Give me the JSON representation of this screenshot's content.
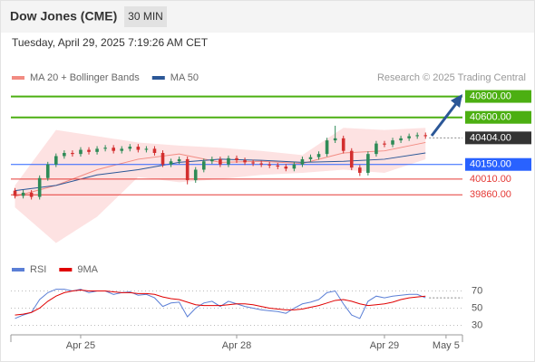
{
  "header": {
    "title": "Dow Jones (CME)",
    "interval": "30 MIN",
    "timestamp": "Tuesday, April 29, 2025 7:19:26 AM CET"
  },
  "chart_data": [
    {
      "type": "candlestick",
      "credit": "Research © 2025 Trading Central",
      "xlim": [
        0,
        55
      ],
      "xticks": [
        {
          "value": 8,
          "label": "Apr 25"
        },
        {
          "value": 27,
          "label": "Apr 28"
        },
        {
          "value": 45,
          "label": "Apr 29"
        },
        {
          "value": 52.5,
          "label": "May 5"
        }
      ],
      "ylim": [
        39300,
        40900
      ],
      "up_color": "#2e8b57",
      "down_color": "#d32f2f",
      "open": [
        39900,
        39850,
        39880,
        39840,
        40020,
        40150,
        40230,
        40260,
        40250,
        40290,
        40270,
        40300,
        40310,
        40280,
        40300,
        40320,
        40290,
        40300,
        40260,
        40150,
        40180,
        40200,
        40000,
        40100,
        40180,
        40200,
        40150,
        40210,
        40190,
        40170,
        40160,
        40150,
        40140,
        40130,
        40110,
        40150,
        40200,
        40220,
        40250,
        40380,
        40400,
        40280,
        40120,
        40070,
        40250,
        40350,
        40340,
        40380,
        40400,
        40420,
        40430
      ],
      "high": [
        39925,
        39905,
        39905,
        40045,
        40175,
        40255,
        40285,
        40285,
        40315,
        40315,
        40325,
        40335,
        40335,
        40325,
        40345,
        40345,
        40325,
        40325,
        40285,
        40205,
        40225,
        40225,
        40125,
        40205,
        40225,
        40225,
        40235,
        40235,
        40215,
        40195,
        40185,
        40175,
        40165,
        40155,
        40175,
        40225,
        40245,
        40275,
        40405,
        40520,
        40425,
        40305,
        40145,
        40275,
        40375,
        40375,
        40405,
        40425,
        40445,
        40455,
        40455
      ],
      "low": [
        39825,
        39825,
        39815,
        39815,
        39995,
        40125,
        40205,
        40225,
        40225,
        40245,
        40245,
        40275,
        40255,
        40255,
        40275,
        40265,
        40265,
        40235,
        40125,
        40125,
        40155,
        39960,
        39975,
        40075,
        40155,
        40125,
        40125,
        40165,
        40145,
        40135,
        40125,
        40115,
        40105,
        40085,
        40085,
        40125,
        40175,
        40195,
        40225,
        40355,
        40255,
        40095,
        40040,
        40045,
        40225,
        40315,
        40315,
        40355,
        40375,
        40395,
        40395
      ],
      "close": [
        39850,
        39880,
        39840,
        40020,
        40150,
        40230,
        40260,
        40250,
        40290,
        40270,
        40300,
        40310,
        40280,
        40300,
        40320,
        40290,
        40300,
        40260,
        40150,
        40180,
        40200,
        40000,
        40100,
        40180,
        40200,
        40150,
        40210,
        40190,
        40170,
        40160,
        40150,
        40140,
        40130,
        40110,
        40150,
        40200,
        40220,
        40250,
        40380,
        40400,
        40280,
        40120,
        40070,
        40250,
        40350,
        40340,
        40380,
        40400,
        40420,
        40430,
        40420
      ],
      "indicators": {
        "x": [
          0,
          5,
          10,
          15,
          20,
          25,
          30,
          35,
          40,
          45,
          50
        ],
        "series": [
          {
            "name": "MA 20 + Bollinger Bands",
            "color": "#f28b82",
            "band_color": "#fde2e2",
            "upper": [
              39950,
              40480,
              40420,
              40360,
              40330,
              40310,
              40280,
              40240,
              40500,
              40480,
              40500
            ],
            "lower": [
              39740,
              39400,
              39650,
              40030,
              39980,
              40010,
              40050,
              40070,
              40100,
              40070,
              40200
            ],
            "values": [
              39845,
              39950,
              40100,
              40200,
              40250,
              40170,
              40180,
              40160,
              40260,
              40280,
              40360
            ]
          },
          {
            "name": "MA 50",
            "color": "#2b5797",
            "values": [
              39900,
              39950,
              40050,
              40100,
              40170,
              40200,
              40190,
              40170,
              40180,
              40200,
              40260
            ]
          }
        ]
      },
      "levels": [
        {
          "value": 40800,
          "label": "40800.00",
          "color": "#4caf12",
          "boxed": true,
          "line": "solid"
        },
        {
          "value": 40600,
          "label": "40600.00",
          "color": "#4caf12",
          "boxed": true,
          "line": "solid"
        },
        {
          "value": 40404,
          "label": "40404.00",
          "color": "#333333",
          "boxed": true,
          "line": "dotted"
        },
        {
          "value": 40150,
          "label": "40150.00",
          "color": "#2962ff",
          "boxed": true,
          "line": "solid"
        },
        {
          "value": 40010,
          "label": "40010.00",
          "color": "#e53935",
          "boxed": false,
          "line": "solid"
        },
        {
          "value": 39860,
          "label": "39860.00",
          "color": "#e53935",
          "boxed": false,
          "line": "solid"
        }
      ]
    },
    {
      "type": "line",
      "ylim": [
        20,
        80
      ],
      "yticks": [
        70,
        50,
        30
      ],
      "series": [
        {
          "name": "RSI",
          "color": "#5b7fd6",
          "values": [
            38,
            42,
            45,
            60,
            68,
            72,
            72,
            70,
            72,
            68,
            70,
            70,
            66,
            68,
            69,
            65,
            66,
            62,
            52,
            56,
            57,
            40,
            50,
            56,
            58,
            52,
            58,
            55,
            52,
            50,
            48,
            47,
            46,
            44,
            50,
            55,
            57,
            60,
            68,
            70,
            55,
            42,
            38,
            58,
            64,
            62,
            64,
            65,
            66,
            66,
            62
          ]
        },
        {
          "name": "9MA",
          "color": "#e00000",
          "values": [
            42,
            43,
            45,
            50,
            58,
            64,
            68,
            70,
            71,
            70,
            70,
            70,
            69,
            68,
            68,
            67,
            67,
            66,
            63,
            61,
            60,
            57,
            54,
            53,
            53,
            53,
            54,
            55,
            55,
            54,
            52,
            50,
            49,
            48,
            48,
            49,
            51,
            53,
            56,
            59,
            60,
            58,
            55,
            53,
            54,
            55,
            57,
            60,
            62,
            63,
            64
          ]
        }
      ]
    }
  ]
}
